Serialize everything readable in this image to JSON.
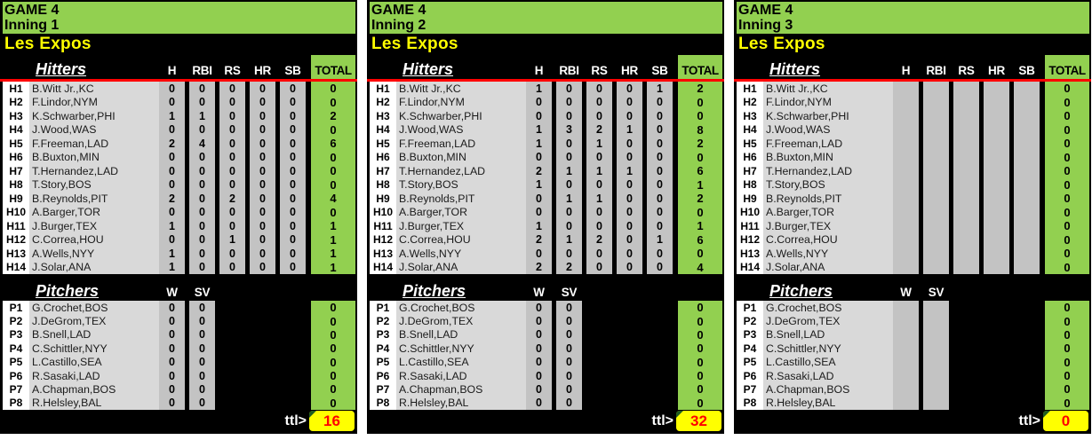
{
  "labels": {
    "hitters": "Hitters",
    "pitchers": "Pitchers",
    "ttl": "ttl>"
  },
  "columns": {
    "hitters": [
      "H",
      "RBI",
      "RS",
      "HR",
      "SB"
    ],
    "total": "TOTAL",
    "pitchers": [
      "W",
      "SV"
    ]
  },
  "colors": {
    "green": "#92D050",
    "yellow": "#FFFF00",
    "red": "#FF0000",
    "name_cell_bg": "#D9D9D9",
    "stat_cell_bg": "#C3C3C3",
    "background": "#000000"
  },
  "panels": [
    {
      "game": "GAME 4",
      "inning": "Inning 1",
      "team": "Les Expos",
      "total": "16",
      "hitters": [
        {
          "id": "H1",
          "name": "B.Witt Jr.,KC",
          "stats": [
            "0",
            "0",
            "0",
            "0",
            "0"
          ],
          "total": "0"
        },
        {
          "id": "H2",
          "name": "F.Lindor,NYM",
          "stats": [
            "0",
            "0",
            "0",
            "0",
            "0"
          ],
          "total": "0"
        },
        {
          "id": "H3",
          "name": "K.Schwarber,PHI",
          "stats": [
            "1",
            "1",
            "0",
            "0",
            "0"
          ],
          "total": "2"
        },
        {
          "id": "H4",
          "name": "J.Wood,WAS",
          "stats": [
            "0",
            "0",
            "0",
            "0",
            "0"
          ],
          "total": "0"
        },
        {
          "id": "H5",
          "name": "F.Freeman,LAD",
          "stats": [
            "2",
            "4",
            "0",
            "0",
            "0"
          ],
          "total": "6"
        },
        {
          "id": "H6",
          "name": "B.Buxton,MIN",
          "stats": [
            "0",
            "0",
            "0",
            "0",
            "0"
          ],
          "total": "0"
        },
        {
          "id": "H7",
          "name": "T.Hernandez,LAD",
          "stats": [
            "0",
            "0",
            "0",
            "0",
            "0"
          ],
          "total": "0"
        },
        {
          "id": "H8",
          "name": "T.Story,BOS",
          "stats": [
            "0",
            "0",
            "0",
            "0",
            "0"
          ],
          "total": "0"
        },
        {
          "id": "H9",
          "name": "B.Reynolds,PIT",
          "stats": [
            "2",
            "0",
            "2",
            "0",
            "0"
          ],
          "total": "4"
        },
        {
          "id": "H10",
          "name": "A.Barger,TOR",
          "stats": [
            "0",
            "0",
            "0",
            "0",
            "0"
          ],
          "total": "0"
        },
        {
          "id": "H11",
          "name": "J.Burger,TEX",
          "stats": [
            "1",
            "0",
            "0",
            "0",
            "0"
          ],
          "total": "1"
        },
        {
          "id": "H12",
          "name": "C.Correa,HOU",
          "stats": [
            "0",
            "0",
            "1",
            "0",
            "0"
          ],
          "total": "1"
        },
        {
          "id": "H13",
          "name": "A.Wells,NYY",
          "stats": [
            "1",
            "0",
            "0",
            "0",
            "0"
          ],
          "total": "1"
        },
        {
          "id": "H14",
          "name": "J.Solar,ANA",
          "stats": [
            "1",
            "0",
            "0",
            "0",
            "0"
          ],
          "total": "1"
        }
      ],
      "pitchers": [
        {
          "id": "P1",
          "name": "G.Crochet,BOS",
          "stats": [
            "0",
            "0"
          ],
          "total": "0"
        },
        {
          "id": "P2",
          "name": "J.DeGrom,TEX",
          "stats": [
            "0",
            "0"
          ],
          "total": "0"
        },
        {
          "id": "P3",
          "name": "B.Snell,LAD",
          "stats": [
            "0",
            "0"
          ],
          "total": "0"
        },
        {
          "id": "P4",
          "name": "C.Schittler,NYY",
          "stats": [
            "0",
            "0"
          ],
          "total": "0"
        },
        {
          "id": "P5",
          "name": "L.Castillo,SEA",
          "stats": [
            "0",
            "0"
          ],
          "total": "0"
        },
        {
          "id": "P6",
          "name": "R.Sasaki,LAD",
          "stats": [
            "0",
            "0"
          ],
          "total": "0"
        },
        {
          "id": "P7",
          "name": "A.Chapman,BOS",
          "stats": [
            "0",
            "0"
          ],
          "total": "0"
        },
        {
          "id": "P8",
          "name": "R.Helsley,BAL",
          "stats": [
            "0",
            "0"
          ],
          "total": "0"
        }
      ]
    },
    {
      "game": "GAME 4",
      "inning": "Inning 2",
      "team": "Les Expos",
      "total": "32",
      "hitters": [
        {
          "id": "H1",
          "name": "B.Witt Jr.,KC",
          "stats": [
            "1",
            "0",
            "0",
            "0",
            "1"
          ],
          "total": "2"
        },
        {
          "id": "H2",
          "name": "F.Lindor,NYM",
          "stats": [
            "0",
            "0",
            "0",
            "0",
            "0"
          ],
          "total": "0"
        },
        {
          "id": "H3",
          "name": "K.Schwarber,PHI",
          "stats": [
            "0",
            "0",
            "0",
            "0",
            "0"
          ],
          "total": "0"
        },
        {
          "id": "H4",
          "name": "J.Wood,WAS",
          "stats": [
            "1",
            "3",
            "2",
            "1",
            "0"
          ],
          "total": "8"
        },
        {
          "id": "H5",
          "name": "F.Freeman,LAD",
          "stats": [
            "1",
            "0",
            "1",
            "0",
            "0"
          ],
          "total": "2"
        },
        {
          "id": "H6",
          "name": "B.Buxton,MIN",
          "stats": [
            "0",
            "0",
            "0",
            "0",
            "0"
          ],
          "total": "0"
        },
        {
          "id": "H7",
          "name": "T.Hernandez,LAD",
          "stats": [
            "2",
            "1",
            "1",
            "1",
            "0"
          ],
          "total": "6"
        },
        {
          "id": "H8",
          "name": "T.Story,BOS",
          "stats": [
            "1",
            "0",
            "0",
            "0",
            "0"
          ],
          "total": "1"
        },
        {
          "id": "H9",
          "name": "B.Reynolds,PIT",
          "stats": [
            "0",
            "1",
            "1",
            "0",
            "0"
          ],
          "total": "2"
        },
        {
          "id": "H10",
          "name": "A.Barger,TOR",
          "stats": [
            "0",
            "0",
            "0",
            "0",
            "0"
          ],
          "total": "0"
        },
        {
          "id": "H11",
          "name": "J.Burger,TEX",
          "stats": [
            "1",
            "0",
            "0",
            "0",
            "0"
          ],
          "total": "1"
        },
        {
          "id": "H12",
          "name": "C.Correa,HOU",
          "stats": [
            "2",
            "1",
            "2",
            "0",
            "1"
          ],
          "total": "6"
        },
        {
          "id": "H13",
          "name": "A.Wells,NYY",
          "stats": [
            "0",
            "0",
            "0",
            "0",
            "0"
          ],
          "total": "0"
        },
        {
          "id": "H14",
          "name": "J.Solar,ANA",
          "stats": [
            "2",
            "2",
            "0",
            "0",
            "0"
          ],
          "total": "4"
        }
      ],
      "pitchers": [
        {
          "id": "P1",
          "name": "G.Crochet,BOS",
          "stats": [
            "0",
            "0"
          ],
          "total": "0"
        },
        {
          "id": "P2",
          "name": "J.DeGrom,TEX",
          "stats": [
            "0",
            "0"
          ],
          "total": "0"
        },
        {
          "id": "P3",
          "name": "B.Snell,LAD",
          "stats": [
            "0",
            "0"
          ],
          "total": "0"
        },
        {
          "id": "P4",
          "name": "C.Schittler,NYY",
          "stats": [
            "0",
            "0"
          ],
          "total": "0"
        },
        {
          "id": "P5",
          "name": "L.Castillo,SEA",
          "stats": [
            "0",
            "0"
          ],
          "total": "0"
        },
        {
          "id": "P6",
          "name": "R.Sasaki,LAD",
          "stats": [
            "0",
            "0"
          ],
          "total": "0"
        },
        {
          "id": "P7",
          "name": "A.Chapman,BOS",
          "stats": [
            "0",
            "0"
          ],
          "total": "0"
        },
        {
          "id": "P8",
          "name": "R.Helsley,BAL",
          "stats": [
            "0",
            "0"
          ],
          "total": "0"
        }
      ]
    },
    {
      "game": "GAME 4",
      "inning": "Inning 3",
      "team": "Les Expos",
      "total": "0",
      "hitters": [
        {
          "id": "H1",
          "name": "B.Witt Jr.,KC",
          "stats": [
            "",
            "",
            "",
            "",
            ""
          ],
          "total": "0"
        },
        {
          "id": "H2",
          "name": "F.Lindor,NYM",
          "stats": [
            "",
            "",
            "",
            "",
            ""
          ],
          "total": "0"
        },
        {
          "id": "H3",
          "name": "K.Schwarber,PHI",
          "stats": [
            "",
            "",
            "",
            "",
            ""
          ],
          "total": "0"
        },
        {
          "id": "H4",
          "name": "J.Wood,WAS",
          "stats": [
            "",
            "",
            "",
            "",
            ""
          ],
          "total": "0"
        },
        {
          "id": "H5",
          "name": "F.Freeman,LAD",
          "stats": [
            "",
            "",
            "",
            "",
            ""
          ],
          "total": "0"
        },
        {
          "id": "H6",
          "name": "B.Buxton,MIN",
          "stats": [
            "",
            "",
            "",
            "",
            ""
          ],
          "total": "0"
        },
        {
          "id": "H7",
          "name": "T.Hernandez,LAD",
          "stats": [
            "",
            "",
            "",
            "",
            ""
          ],
          "total": "0"
        },
        {
          "id": "H8",
          "name": "T.Story,BOS",
          "stats": [
            "",
            "",
            "",
            "",
            ""
          ],
          "total": "0"
        },
        {
          "id": "H9",
          "name": "B.Reynolds,PIT",
          "stats": [
            "",
            "",
            "",
            "",
            ""
          ],
          "total": "0"
        },
        {
          "id": "H10",
          "name": "A.Barger,TOR",
          "stats": [
            "",
            "",
            "",
            "",
            ""
          ],
          "total": "0"
        },
        {
          "id": "H11",
          "name": "J.Burger,TEX",
          "stats": [
            "",
            "",
            "",
            "",
            ""
          ],
          "total": "0"
        },
        {
          "id": "H12",
          "name": "C.Correa,HOU",
          "stats": [
            "",
            "",
            "",
            "",
            ""
          ],
          "total": "0"
        },
        {
          "id": "H13",
          "name": "A.Wells,NYY",
          "stats": [
            "",
            "",
            "",
            "",
            ""
          ],
          "total": "0"
        },
        {
          "id": "H14",
          "name": "J.Solar,ANA",
          "stats": [
            "",
            "",
            "",
            "",
            ""
          ],
          "total": "0"
        }
      ],
      "pitchers": [
        {
          "id": "P1",
          "name": "G.Crochet,BOS",
          "stats": [
            "",
            ""
          ],
          "total": "0"
        },
        {
          "id": "P2",
          "name": "J.DeGrom,TEX",
          "stats": [
            "",
            ""
          ],
          "total": "0"
        },
        {
          "id": "P3",
          "name": "B.Snell,LAD",
          "stats": [
            "",
            ""
          ],
          "total": "0"
        },
        {
          "id": "P4",
          "name": "C.Schittler,NYY",
          "stats": [
            "",
            ""
          ],
          "total": "0"
        },
        {
          "id": "P5",
          "name": "L.Castillo,SEA",
          "stats": [
            "",
            ""
          ],
          "total": "0"
        },
        {
          "id": "P6",
          "name": "R.Sasaki,LAD",
          "stats": [
            "",
            ""
          ],
          "total": "0"
        },
        {
          "id": "P7",
          "name": "A.Chapman,BOS",
          "stats": [
            "",
            ""
          ],
          "total": "0"
        },
        {
          "id": "P8",
          "name": "R.Helsley,BAL",
          "stats": [
            "",
            ""
          ],
          "total": "0"
        }
      ]
    }
  ]
}
